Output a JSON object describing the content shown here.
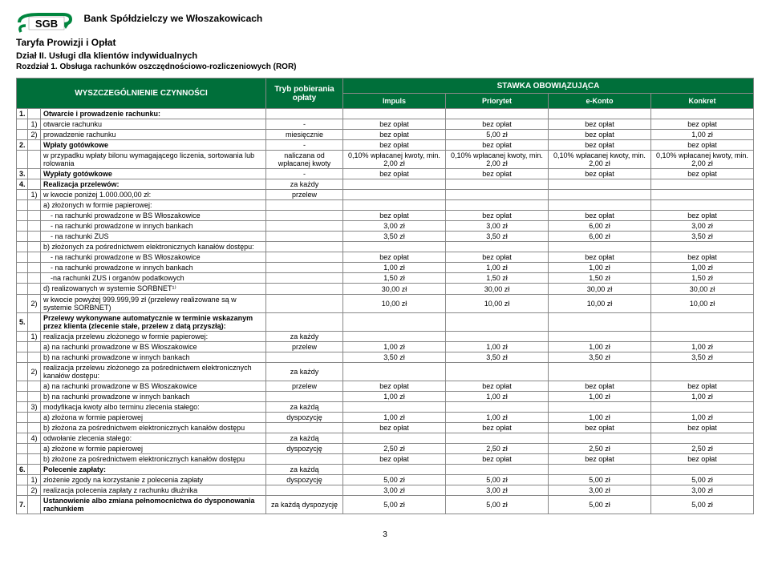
{
  "header": {
    "bank": "Bank Spółdzielczy we Włoszakowicach",
    "tariff": "Taryfa Prowizji i Opłat",
    "section": "Dział II. Usługi dla klientów indywidualnych",
    "subsection": "Rozdział 1. Obsługa rachunków oszczędnościowo-rozliczeniowych (ROR)",
    "logo_text": "SGB"
  },
  "columns": {
    "wysz": "WYSZCZEGÓLNIENIE CZYNNOŚCI",
    "tryb": "Tryb pobierania opłaty",
    "stawka": "STAWKA OBOWIĄZUJĄCA",
    "impuls": "Impuls",
    "priorytet": "Priorytet",
    "ekonto": "e-Konto",
    "konkret": "Konkret"
  },
  "rows": [
    {
      "n": "1.",
      "s": "",
      "d": "Otwarcie i prowadzenie rachunku:",
      "tr": "",
      "v": [
        "",
        "",
        "",
        ""
      ],
      "bold": true
    },
    {
      "n": "",
      "s": "1)",
      "d": "otwarcie rachunku",
      "tr": "-",
      "v": [
        "bez opłat",
        "bez opłat",
        "bez opłat",
        "bez opłat"
      ]
    },
    {
      "n": "",
      "s": "2)",
      "d": "prowadzenie rachunku",
      "tr": "miesięcznie",
      "v": [
        "bez opłat",
        "5,00 zł",
        "bez opłat",
        "1,00 zł"
      ]
    },
    {
      "n": "2.",
      "s": "",
      "d": "Wpłaty gotówkowe",
      "tr": "-",
      "v": [
        "bez opłat",
        "bez opłat",
        "bez opłat",
        "bez opłat"
      ],
      "bold": true
    },
    {
      "n": "",
      "s": "",
      "d": "w przypadku wpłaty bilonu wymagającego liczenia, sortowania lub rolowania",
      "tr": "naliczana od wpłacanej kwoty",
      "v": [
        "0,10% wpłacanej kwoty, min. 2,00 zł",
        "0,10% wpłacanej kwoty, min. 2,00 zł",
        "0,10% wpłacanej kwoty, min. 2,00 zł",
        "0,10% wpłacanej kwoty, min. 2,00 zł"
      ],
      "ind": 1
    },
    {
      "n": "3.",
      "s": "",
      "d": "Wypłaty gotówkowe",
      "tr": "-",
      "v": [
        "bez opłat",
        "bez opłat",
        "bez opłat",
        "bez opłat"
      ],
      "bold": true
    },
    {
      "n": "4.",
      "s": "",
      "d": "Realizacja przelewów:",
      "tr": "za każdy",
      "v": [
        "",
        "",
        "",
        ""
      ],
      "bold": true
    },
    {
      "n": "",
      "s": "1)",
      "d": "w kwocie poniżej 1.000.000,00 zł:",
      "tr": "przelew",
      "v": [
        "",
        "",
        "",
        ""
      ]
    },
    {
      "n": "",
      "s": "",
      "d": "a) złożonych w formie papierowej:",
      "tr": "",
      "v": [
        "",
        "",
        "",
        ""
      ],
      "ind": 1
    },
    {
      "n": "",
      "s": "",
      "d": "- na rachunki prowadzone w BS Włoszakowice",
      "tr": "",
      "v": [
        "bez opłat",
        "bez opłat",
        "bez opłat",
        "bez opłat"
      ],
      "ind": 2
    },
    {
      "n": "",
      "s": "",
      "d": "- na rachunki prowadzone w innych bankach",
      "tr": "",
      "v": [
        "3,00 zł",
        "3,00 zł",
        "6,00 zł",
        "3,00 zł"
      ],
      "ind": 2
    },
    {
      "n": "",
      "s": "",
      "d": "- na rachunki ZUS",
      "tr": "",
      "v": [
        "3,50 zł",
        "3,50 zł",
        "6,00 zł",
        "3,50 zł"
      ],
      "ind": 2
    },
    {
      "n": "",
      "s": "",
      "d": "b) złożonych za pośrednictwem elektronicznych kanałów dostępu:",
      "tr": "",
      "v": [
        "",
        "",
        "",
        ""
      ],
      "ind": 1
    },
    {
      "n": "",
      "s": "",
      "d": "- na rachunki prowadzone w BS Włoszakowice",
      "tr": "",
      "v": [
        "bez opłat",
        "bez opłat",
        "bez opłat",
        "bez opłat"
      ],
      "ind": 2
    },
    {
      "n": "",
      "s": "",
      "d": "- na rachunki prowadzone w innych bankach",
      "tr": "",
      "v": [
        "1,00 zł",
        "1,00 zł",
        "1,00 zł",
        "1,00 zł"
      ],
      "ind": 2
    },
    {
      "n": "",
      "s": "",
      "d": "-na rachunki ZUS i organów podatkowych",
      "tr": "",
      "v": [
        "1,50 zł",
        "1,50 zł",
        "1,50 zł",
        "1,50 zł"
      ],
      "ind": 2
    },
    {
      "n": "",
      "s": "",
      "d": "d) realizowanych w systemie SORBNET¹⁾",
      "tr": "",
      "v": [
        "30,00 zł",
        "30,00 zł",
        "30,00 zł",
        "30,00 zł"
      ],
      "ind": 1
    },
    {
      "n": "",
      "s": "2)",
      "d": "w kwocie powyżej 999.999,99 zł (przelewy realizowane są w systemie SORBNET)",
      "tr": "",
      "v": [
        "10,00 zł",
        "10,00 zł",
        "10,00 zł",
        "10,00 zł"
      ]
    },
    {
      "n": "5.",
      "s": "",
      "d": "Przelewy wykonywane automatycznie w terminie wskazanym przez klienta (zlecenie stałe, przelew z datą przyszłą):",
      "tr": "",
      "v": [
        "",
        "",
        "",
        ""
      ],
      "bold": true
    },
    {
      "n": "",
      "s": "1)",
      "d": "realizacja przelewu złożonego w formie papierowej:",
      "tr": "za każdy",
      "v": [
        "",
        "",
        "",
        ""
      ]
    },
    {
      "n": "",
      "s": "",
      "d": "a) na rachunki prowadzone w BS Włoszakowice",
      "tr": "przelew",
      "v": [
        "1,00 zł",
        "1,00 zł",
        "1,00 zł",
        "1,00 zł"
      ],
      "ind": 1
    },
    {
      "n": "",
      "s": "",
      "d": "b) na rachunki prowadzone w innych bankach",
      "tr": "",
      "v": [
        "3,50 zł",
        "3,50 zł",
        "3,50 zł",
        "3,50 zł"
      ],
      "ind": 1
    },
    {
      "n": "",
      "s": "2)",
      "d": "realizacja przelewu złożonego za pośrednictwem elektronicznych kanałów dostępu:",
      "tr": "za każdy",
      "v": [
        "",
        "",
        "",
        ""
      ]
    },
    {
      "n": "",
      "s": "",
      "d": "a) na rachunki prowadzone w BS Włoszakowice",
      "tr": "przelew",
      "v": [
        "bez opłat",
        "bez opłat",
        "bez opłat",
        "bez opłat"
      ],
      "ind": 1
    },
    {
      "n": "",
      "s": "",
      "d": "b) na rachunki prowadzone w innych bankach",
      "tr": "",
      "v": [
        "1,00 zł",
        "1,00 zł",
        "1,00 zł",
        "1,00 zł"
      ],
      "ind": 1
    },
    {
      "n": "",
      "s": "3)",
      "d": "modyfikacja kwoty albo terminu zlecenia stałego:",
      "tr": "za każdą",
      "v": [
        "",
        "",
        "",
        ""
      ]
    },
    {
      "n": "",
      "s": "",
      "d": "a) złożona w formie papierowej",
      "tr": "dyspozycję",
      "v": [
        "1,00 zł",
        "1,00 zł",
        "1,00 zł",
        "1,00 zł"
      ],
      "ind": 1
    },
    {
      "n": "",
      "s": "",
      "d": "b) złożona za pośrednictwem elektronicznych kanałów dostępu",
      "tr": "",
      "v": [
        "bez opłat",
        "bez opłat",
        "bez opłat",
        "bez opłat"
      ],
      "ind": 1
    },
    {
      "n": "",
      "s": "4)",
      "d": "odwołanie zlecenia stałego:",
      "tr": "za każdą",
      "v": [
        "",
        "",
        "",
        ""
      ]
    },
    {
      "n": "",
      "s": "",
      "d": "a) złożone w formie papierowej",
      "tr": "dyspozycję",
      "v": [
        "2,50 zł",
        "2,50 zł",
        "2,50 zł",
        "2,50 zł"
      ],
      "ind": 1
    },
    {
      "n": "",
      "s": "",
      "d": "b) złożone za pośrednictwem elektronicznych kanałów dostępu",
      "tr": "",
      "v": [
        "bez opłat",
        "bez opłat",
        "bez opłat",
        "bez opłat"
      ],
      "ind": 1
    },
    {
      "n": "6.",
      "s": "",
      "d": "Polecenie zapłaty:",
      "tr": "za każdą",
      "v": [
        "",
        "",
        "",
        ""
      ],
      "bold": true
    },
    {
      "n": "",
      "s": "1)",
      "d": "złożenie zgody na korzystanie z polecenia zapłaty",
      "tr": "dyspozycję",
      "v": [
        "5,00 zł",
        "5,00 zł",
        "5,00 zł",
        "5,00 zł"
      ]
    },
    {
      "n": "",
      "s": "2)",
      "d": "realizacja polecenia zapłaty z rachunku dłużnika",
      "tr": "",
      "v": [
        "3,00 zł",
        "3,00 zł",
        "3,00 zł",
        "3,00 zł"
      ]
    },
    {
      "n": "7.",
      "s": "",
      "d": "Ustanowienie albo zmiana pełnomocnictwa do dysponowania rachunkiem",
      "tr": "za każdą dyspozycję",
      "v": [
        "5,00 zł",
        "5,00 zł",
        "5,00 zł",
        "5,00 zł"
      ],
      "bold": true
    }
  ],
  "page_number": "3"
}
